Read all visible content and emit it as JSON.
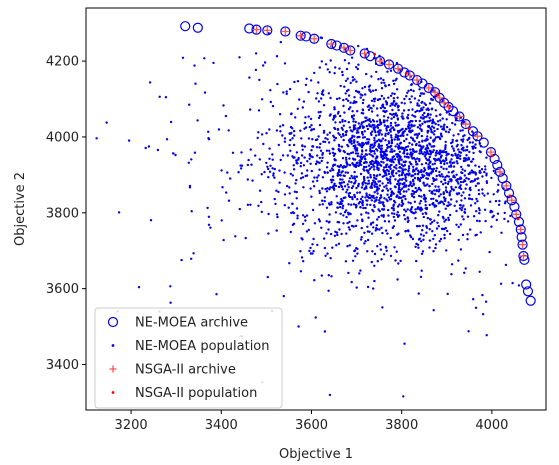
{
  "chart_data": {
    "type": "scatter",
    "title": "",
    "xlabel": "Objective 1",
    "ylabel": "Objective 2",
    "xlim": [
      3100,
      4120
    ],
    "ylim": [
      3280,
      4340
    ],
    "xticks": [
      3200,
      3400,
      3600,
      3800,
      4000
    ],
    "yticks": [
      3400,
      3600,
      3800,
      4000,
      4200
    ],
    "grid": false,
    "legend": "lower-left",
    "cloud": {
      "center": [
        3790,
        3940
      ],
      "spread": [
        130,
        115
      ],
      "count": 2400
    },
    "series": [
      {
        "name": "NE-MOEA archive",
        "marker": "open-circle",
        "color": "#0000ee",
        "points": [
          [
            3320,
            4292
          ],
          [
            3348,
            4288
          ],
          [
            3462,
            4286
          ],
          [
            3478,
            4283
          ],
          [
            3502,
            4281
          ],
          [
            3542,
            4278
          ],
          [
            3576,
            4267
          ],
          [
            3588,
            4265
          ],
          [
            3606,
            4259
          ],
          [
            3644,
            4245
          ],
          [
            3656,
            4241
          ],
          [
            3672,
            4235
          ],
          [
            3686,
            4228
          ],
          [
            3718,
            4220
          ],
          [
            3730,
            4213
          ],
          [
            3752,
            4200
          ],
          [
            3772,
            4191
          ],
          [
            3792,
            4180
          ],
          [
            3806,
            4170
          ],
          [
            3818,
            4162
          ],
          [
            3834,
            4150
          ],
          [
            3846,
            4141
          ],
          [
            3860,
            4129
          ],
          [
            3874,
            4118
          ],
          [
            3884,
            4103
          ],
          [
            3894,
            4090
          ],
          [
            3904,
            4079
          ],
          [
            3914,
            4068
          ],
          [
            3928,
            4054
          ],
          [
            3942,
            4034
          ],
          [
            3958,
            4015
          ],
          [
            3968,
            4002
          ],
          [
            3982,
            3985
          ],
          [
            3998,
            3960
          ],
          [
            4006,
            3942
          ],
          [
            4012,
            3926
          ],
          [
            4018,
            3908
          ],
          [
            4024,
            3891
          ],
          [
            4032,
            3871
          ],
          [
            4038,
            3852
          ],
          [
            4044,
            3833
          ],
          [
            4050,
            3816
          ],
          [
            4054,
            3796
          ],
          [
            4060,
            3776
          ],
          [
            4064,
            3756
          ],
          [
            4066,
            3736
          ],
          [
            4068,
            3716
          ],
          [
            4070,
            3686
          ],
          [
            4072,
            3676
          ],
          [
            4076,
            3611
          ],
          [
            4080,
            3593
          ],
          [
            4086,
            3568
          ]
        ]
      },
      {
        "name": "NE-MOEA population",
        "marker": "dot",
        "color": "#0000ee"
      },
      {
        "name": "NSGA-II archive",
        "marker": "plus",
        "color": "#ff5555",
        "points": [
          [
            3478,
            4283
          ],
          [
            3502,
            4281
          ],
          [
            3542,
            4278
          ],
          [
            3576,
            4267
          ],
          [
            3606,
            4259
          ],
          [
            3644,
            4245
          ],
          [
            3672,
            4235
          ],
          [
            3686,
            4228
          ],
          [
            3718,
            4220
          ],
          [
            3752,
            4200
          ],
          [
            3772,
            4191
          ],
          [
            3792,
            4180
          ],
          [
            3818,
            4162
          ],
          [
            3834,
            4150
          ],
          [
            3860,
            4129
          ],
          [
            3874,
            4118
          ],
          [
            3884,
            4103
          ],
          [
            3894,
            4090
          ],
          [
            3904,
            4079
          ],
          [
            3928,
            4054
          ],
          [
            3942,
            4034
          ],
          [
            3968,
            4002
          ],
          [
            3998,
            3960
          ],
          [
            4018,
            3908
          ],
          [
            4032,
            3871
          ],
          [
            4044,
            3833
          ],
          [
            4054,
            3796
          ],
          [
            4064,
            3756
          ],
          [
            4068,
            3716
          ],
          [
            4070,
            3686
          ]
        ]
      },
      {
        "name": "NSGA-II population",
        "marker": "dot",
        "color": "#ff0000",
        "points": [
          [
            3740,
            4218
          ],
          [
            3810,
            4168
          ],
          [
            3880,
            4110
          ],
          [
            3950,
            4022
          ],
          [
            4000,
            3950
          ],
          [
            4040,
            3845
          ],
          [
            4058,
            3784
          ]
        ]
      }
    ]
  }
}
